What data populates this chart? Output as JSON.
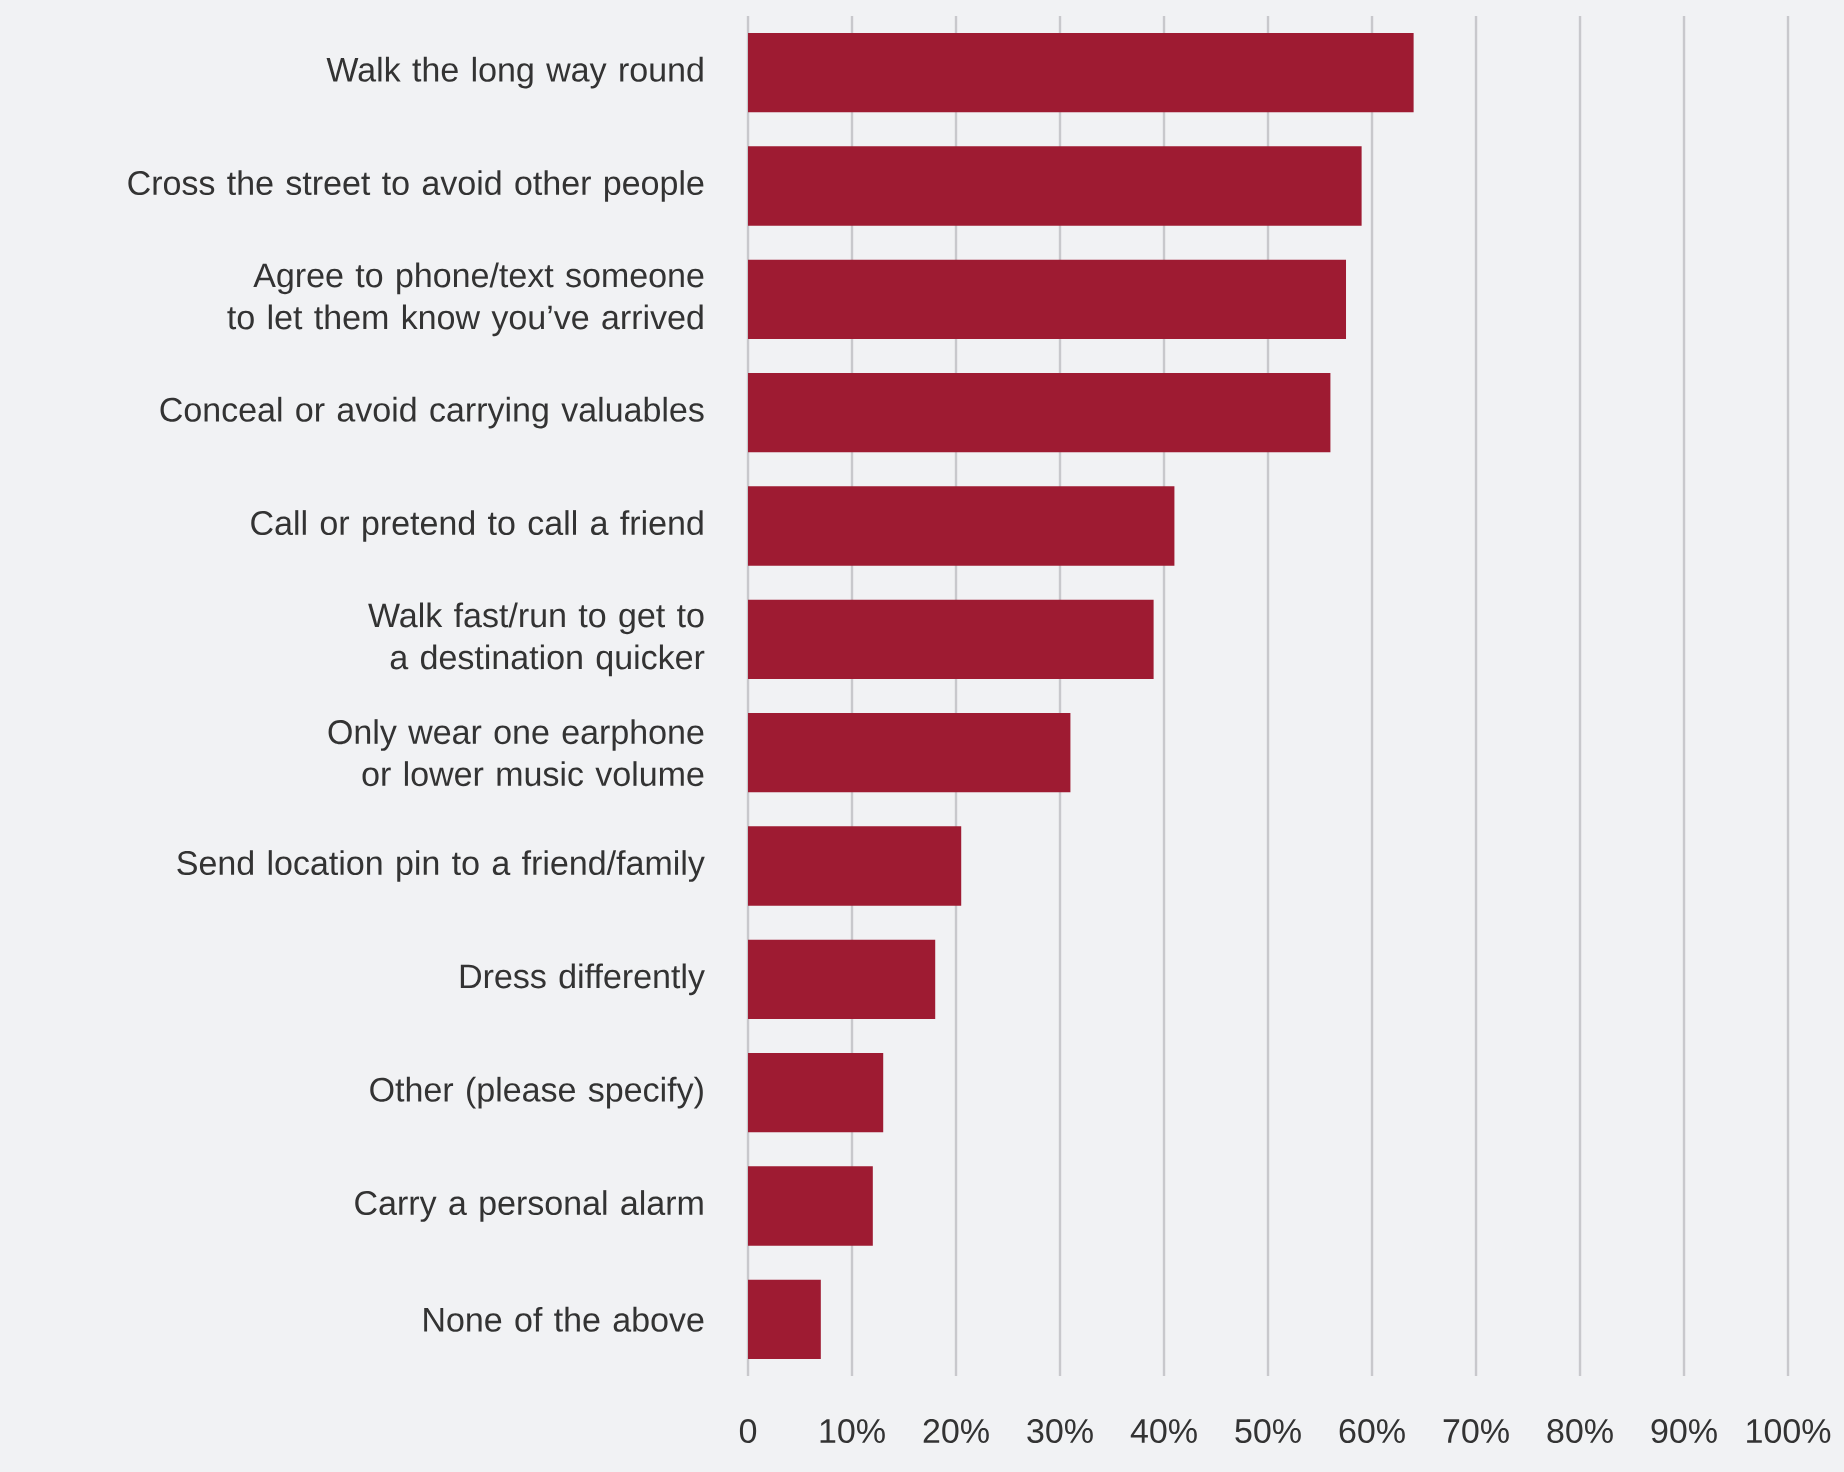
{
  "chart_data": {
    "type": "bar",
    "orientation": "horizontal",
    "categories": [
      "Walk the long way round",
      "Cross the street to avoid other people",
      "Agree to phone/text someone to let them know you’ve arrived",
      "Conceal or avoid carrying valuables",
      "Call or pretend to call a friend",
      "Walk fast/run to get to a destination quicker",
      "Only wear one earphone or lower music volume",
      "Send location pin to a friend/family",
      "Dress differently",
      "Other (please specify)",
      "Carry a personal alarm",
      "None of the above"
    ],
    "values": [
      64,
      59,
      57.5,
      56,
      41,
      39,
      31,
      20.5,
      18,
      13,
      12,
      7
    ],
    "color": "#9e1b32",
    "xlim": [
      0,
      100
    ],
    "xticks": [
      0,
      {
        "value": 10,
        "label": "10%"
      },
      {
        "value": 20,
        "label": "20%"
      },
      {
        "value": 30,
        "label": "30%"
      },
      {
        "value": 40,
        "label": "40%"
      },
      {
        "value": 50,
        "label": "50%"
      },
      {
        "value": 60,
        "label": "60%"
      },
      {
        "value": 70,
        "label": "70%"
      },
      {
        "value": 80,
        "label": "80%"
      },
      {
        "value": 90,
        "label": "90%"
      },
      {
        "value": 100,
        "label": "100%"
      }
    ],
    "grid": "x"
  }
}
